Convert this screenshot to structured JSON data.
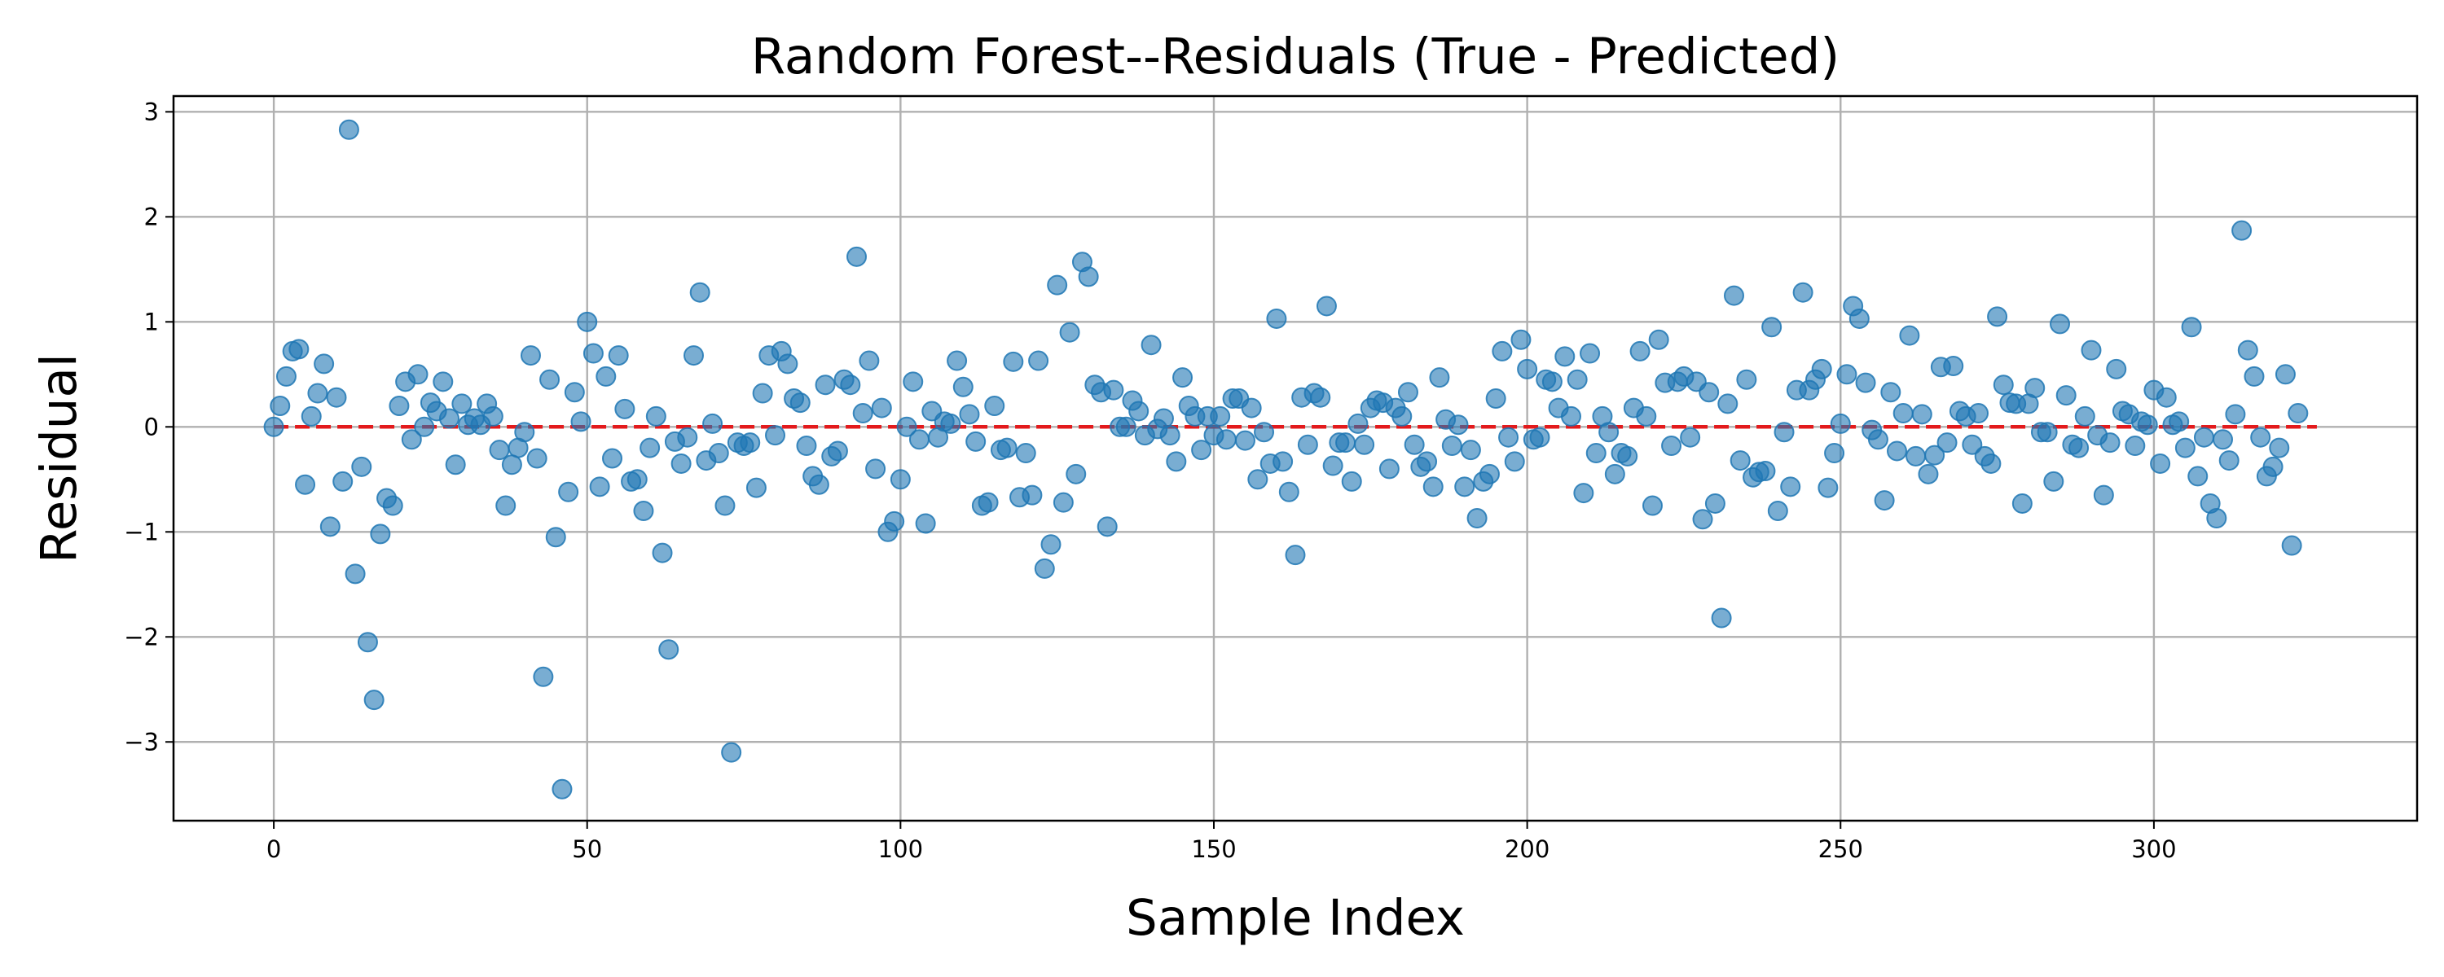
{
  "chart_data": {
    "type": "scatter",
    "title": "Random Forest--Residuals (True - Predicted)",
    "xlabel": "Sample Index",
    "ylabel": "Residual",
    "xlim": [
      -16,
      342
    ],
    "ylim": [
      -3.75,
      3.15
    ],
    "xticks": [
      0,
      50,
      100,
      150,
      200,
      250,
      300
    ],
    "yticks": [
      -3,
      -2,
      -1,
      0,
      1,
      2,
      3
    ],
    "ytick_labels": [
      "−3",
      "−2",
      "−1",
      "0",
      "1",
      "2",
      "3"
    ],
    "grid": true,
    "reference_line": {
      "y": 0,
      "x_range": [
        0,
        326
      ],
      "style": "dashed",
      "color": "#e31a1c"
    },
    "marker_color": "#1f77b4",
    "marker_alpha": 0.6,
    "series": [
      {
        "y": [
          0.0,
          0.2,
          0.48,
          0.72,
          0.74,
          -0.55,
          0.1,
          0.32,
          0.6,
          -0.95,
          0.28,
          -0.52,
          2.83,
          -1.4,
          -0.38,
          -2.05,
          -2.6,
          -1.02,
          -0.68,
          -0.75,
          0.2,
          0.43,
          -0.12,
          0.5,
          0.0,
          0.23,
          0.15,
          0.43,
          0.08,
          -0.36,
          0.22,
          0.02,
          0.08,
          0.02,
          0.22,
          0.1,
          -0.22,
          -0.75,
          -0.36,
          -0.2,
          -0.05,
          0.68,
          -0.3,
          -2.38,
          0.45,
          -1.05,
          -3.45,
          -0.62,
          0.33,
          0.05,
          1.0,
          0.7,
          -0.57,
          0.48,
          -0.3,
          0.68,
          0.17,
          -0.52,
          -0.5,
          -0.8,
          -0.2,
          0.1,
          -1.2,
          -2.12,
          -0.14,
          -0.35,
          -0.1,
          0.68,
          1.28,
          -0.32,
          0.03,
          -0.25,
          -0.75,
          -3.1,
          -0.15,
          -0.18,
          -0.15,
          -0.58,
          0.32,
          0.68,
          -0.08,
          0.72,
          0.6,
          0.27,
          0.23,
          -0.18,
          -0.47,
          -0.55,
          0.4,
          -0.28,
          -0.23,
          0.45,
          0.4,
          1.62,
          0.13,
          0.63,
          -0.4,
          0.18,
          -1.0,
          -0.9,
          -0.5,
          0.0,
          0.43,
          -0.12,
          -0.92,
          0.15,
          -0.1,
          0.05,
          0.03,
          0.63,
          0.38,
          0.12,
          -0.14,
          -0.75,
          -0.72,
          0.2,
          -0.22,
          -0.2,
          0.62,
          -0.67,
          -0.25,
          -0.65,
          0.63,
          -1.35,
          -1.12,
          1.35,
          -0.72,
          0.9,
          -0.45,
          1.57,
          1.43,
          0.4,
          0.33,
          -0.95,
          0.35,
          0.0,
          0.0,
          0.25,
          0.15,
          -0.08,
          0.78,
          -0.02,
          0.08,
          -0.08,
          -0.33,
          0.47,
          0.2,
          0.1,
          -0.22,
          0.1,
          -0.08,
          0.1,
          -0.12,
          0.27,
          0.27,
          -0.13,
          0.18,
          -0.5,
          -0.05,
          -0.35,
          1.03,
          -0.33,
          -0.62,
          -1.22,
          0.28,
          -0.17,
          0.32,
          0.28,
          1.15,
          -0.37,
          -0.15,
          -0.15,
          -0.52,
          0.03,
          -0.17,
          0.18,
          0.25,
          0.23,
          -0.4,
          0.18,
          0.1,
          0.33,
          -0.17,
          -0.38,
          -0.33,
          -0.57,
          0.47,
          0.07,
          -0.18,
          0.02,
          -0.57,
          -0.22,
          -0.87,
          -0.52,
          -0.45,
          0.27,
          0.72,
          -0.1,
          -0.33,
          0.83,
          0.55,
          -0.12,
          -0.1,
          0.45,
          0.43,
          0.18,
          0.67,
          0.1,
          0.45,
          -0.63,
          0.7,
          -0.25,
          0.1,
          -0.05,
          -0.45,
          -0.25,
          -0.28,
          0.18,
          0.72,
          0.1,
          -0.75,
          0.83,
          0.42,
          -0.18,
          0.43,
          0.48,
          -0.1,
          0.43,
          -0.88,
          0.33,
          -0.73,
          -1.82,
          0.22,
          1.25,
          -0.32,
          0.45,
          -0.48,
          -0.43,
          -0.42,
          0.95,
          -0.8,
          -0.05,
          -0.57,
          0.35,
          1.28,
          0.35,
          0.45,
          0.55,
          -0.58,
          -0.25,
          0.03,
          0.5,
          1.15,
          1.03,
          0.42,
          -0.03,
          -0.12,
          -0.7,
          0.33,
          -0.23,
          0.13,
          0.87,
          -0.28,
          0.12,
          -0.45,
          -0.27,
          0.57,
          -0.15,
          0.58,
          0.15,
          0.1,
          -0.17,
          0.13,
          -0.28,
          -0.35,
          1.05,
          0.4,
          0.23,
          0.22,
          -0.73,
          0.22,
          0.37,
          -0.05,
          -0.05,
          -0.52,
          0.98,
          0.3,
          -0.17,
          -0.2,
          0.1,
          0.73,
          -0.08,
          -0.65,
          -0.15,
          0.55,
          0.15,
          0.12,
          -0.18,
          0.05,
          0.02,
          0.35,
          -0.35,
          0.28,
          0.02,
          0.05,
          -0.2,
          0.95,
          -0.47,
          -0.1,
          -0.73,
          -0.87,
          -0.12,
          -0.32,
          0.12,
          1.87,
          0.73,
          0.48,
          -0.1,
          -0.47,
          -0.38,
          -0.2,
          0.5,
          -1.13,
          0.13
        ]
      }
    ]
  }
}
